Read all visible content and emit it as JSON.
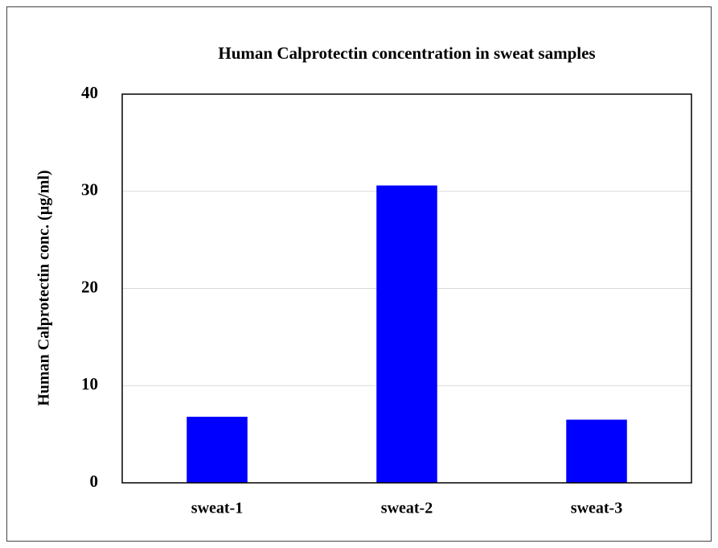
{
  "chart_data": {
    "type": "bar",
    "title": "Human Calprotectin concentration in sweat samples",
    "y_label": "Human Calprotectin conc. (µg/ml)",
    "categories": [
      "sweat-1",
      "sweat-2",
      "sweat-3"
    ],
    "values": [
      6.8,
      30.6,
      6.5
    ],
    "color": "#0000ff",
    "ylim": [
      0,
      40
    ],
    "yticks": [
      0,
      10,
      20,
      30,
      40
    ],
    "grid": true
  }
}
